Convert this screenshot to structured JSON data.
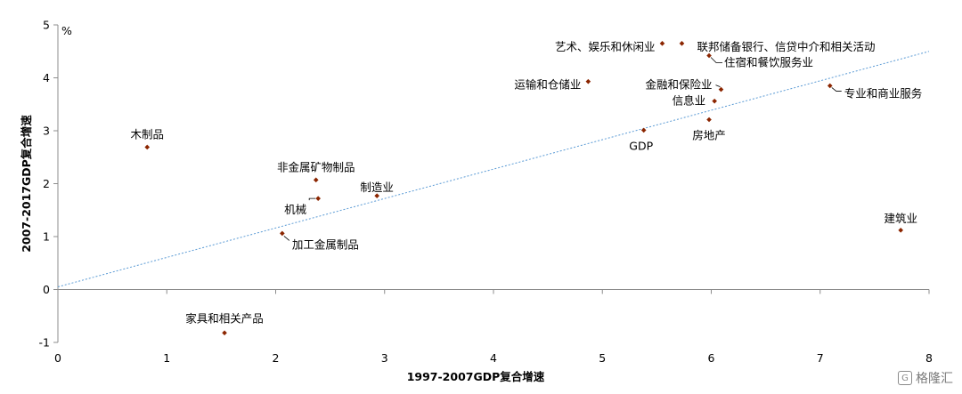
{
  "chart_data": {
    "type": "scatter",
    "title": "",
    "xlabel": "1997-2007GDP复合增速",
    "ylabel": "2007-2017GDP复合增速",
    "y_unit": "%",
    "xlim": [
      0,
      8
    ],
    "ylim": [
      -1,
      5
    ],
    "x_ticks": [
      0,
      1,
      2,
      3,
      4,
      5,
      6,
      7,
      8
    ],
    "y_ticks": [
      -1,
      0,
      1,
      2,
      3,
      4,
      5
    ],
    "grid": false,
    "marker_color": "#8B2500",
    "trendline": {
      "style": "dotted",
      "color": "#5B9BD5",
      "from": [
        0,
        0.05
      ],
      "to": [
        8,
        4.5
      ]
    },
    "points": [
      {
        "label": "木制品",
        "x": 0.82,
        "y": 2.69
      },
      {
        "label": "非金属矿物制品",
        "x": 2.37,
        "y": 2.07
      },
      {
        "label": "机械",
        "x": 2.39,
        "y": 1.72
      },
      {
        "label": "制造业",
        "x": 2.93,
        "y": 1.77
      },
      {
        "label": "加工金属制品",
        "x": 2.06,
        "y": 1.06
      },
      {
        "label": "家具和相关产品",
        "x": 1.53,
        "y": -0.82
      },
      {
        "label": "运输和仓储业",
        "x": 4.87,
        "y": 3.93
      },
      {
        "label": "艺术、娱乐和休闲业",
        "x": 5.55,
        "y": 4.65
      },
      {
        "label": "联邦储备银行、信贷中介和相关活动",
        "x": 5.73,
        "y": 4.65
      },
      {
        "label": "住宿和餐饮服务业",
        "x": 5.98,
        "y": 4.42
      },
      {
        "label": "金融和保险业",
        "x": 6.09,
        "y": 3.78
      },
      {
        "label": "信息业",
        "x": 6.03,
        "y": 3.56
      },
      {
        "label": "房地产",
        "x": 5.98,
        "y": 3.21
      },
      {
        "label": "GDP",
        "x": 5.38,
        "y": 3.01
      },
      {
        "label": "专业和商业服务",
        "x": 7.09,
        "y": 3.85
      },
      {
        "label": "建筑业",
        "x": 7.74,
        "y": 1.12
      }
    ]
  },
  "watermark": {
    "logo": "G",
    "text": "格隆汇"
  }
}
